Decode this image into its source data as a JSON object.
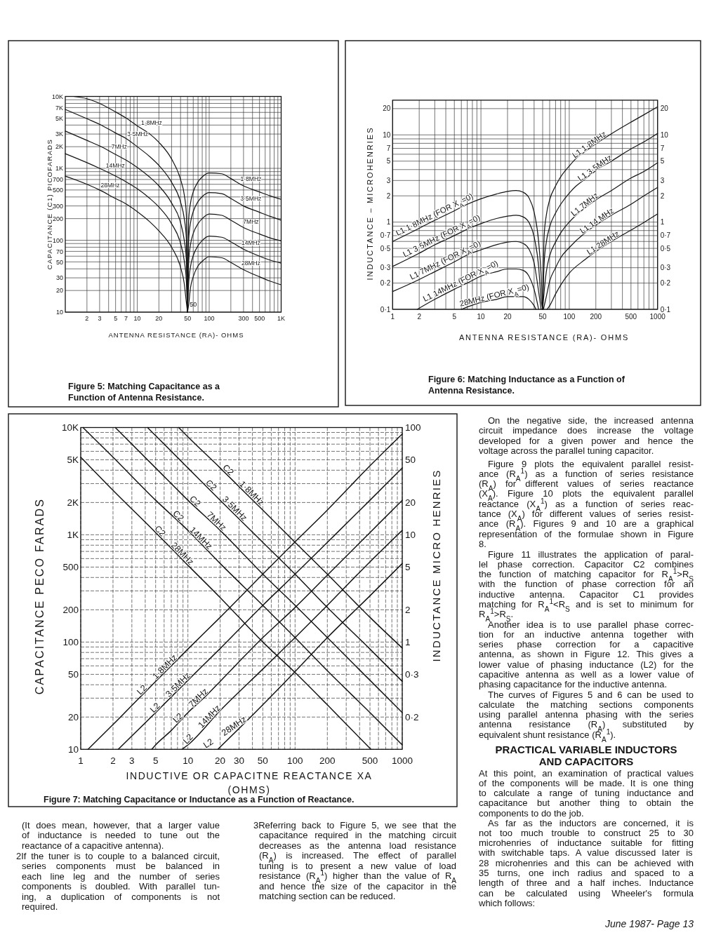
{
  "chart_data": [
    {
      "type": "line",
      "title": "Figure 5: Matching Capacitance as a Function of Antenna Resistance.",
      "xlabel": "ANTENNA RESISTANCE (RA)- OHMS",
      "ylabel": "CAPACITANCE (C1) PICOFARADS",
      "log": "xy",
      "grid": true,
      "xlim": [
        1,
        1000
      ],
      "ylim": [
        10,
        10000
      ],
      "xticks": [
        2,
        3,
        {
          "value": 4,
          "label": null
        },
        5,
        {
          "value": 6,
          "label": null
        },
        7,
        {
          "value": 8,
          "label": null
        },
        {
          "value": 9,
          "label": null
        },
        10,
        20,
        {
          "value": 30,
          "label": null
        },
        {
          "value": 40,
          "label": null
        },
        50,
        {
          "value": 60,
          "label": null
        },
        {
          "value": 70,
          "label": null
        },
        {
          "value": 80,
          "label": null
        },
        {
          "value": 90,
          "label": null
        },
        100,
        {
          "value": 200,
          "label": null
        },
        300,
        {
          "value": 400,
          "label": null
        },
        500,
        {
          "value": 600,
          "label": null
        },
        {
          "value": 700,
          "label": null
        },
        {
          "value": 800,
          "label": null
        },
        {
          "value": 900,
          "label": null
        },
        {
          "value": 1000,
          "label": "1K"
        }
      ],
      "yticks": [
        10,
        20,
        30,
        {
          "value": 40,
          "label": null
        },
        50,
        {
          "value": 60,
          "label": null
        },
        70,
        {
          "value": 80,
          "label": null
        },
        {
          "value": 90,
          "label": null
        },
        100,
        200,
        300,
        {
          "value": 400,
          "label": null
        },
        500,
        {
          "value": 600,
          "label": null
        },
        700,
        {
          "value": 800,
          "label": null
        },
        {
          "value": 900,
          "label": null
        },
        {
          "value": 1000,
          "label": "1K"
        },
        {
          "value": 2000,
          "label": "2K"
        },
        {
          "value": 3000,
          "label": "3K"
        },
        {
          "value": 4000,
          "label": null
        },
        {
          "value": 5000,
          "label": "5K"
        },
        {
          "value": 6000,
          "label": null
        },
        {
          "value": 7000,
          "label": "7K"
        },
        {
          "value": 8000,
          "label": null
        },
        {
          "value": 9000,
          "label": null
        },
        {
          "value": 10000,
          "label": "10K"
        }
      ],
      "series": [
        {
          "name": "1·8MHz",
          "color": "#141414",
          "x": [
            1.3,
            2,
            3,
            5,
            7,
            10,
            15,
            20,
            30,
            40,
            45,
            48,
            50
          ],
          "values": [
            10000,
            9300,
            8000,
            6100,
            5000,
            3900,
            3000,
            2300,
            1350,
            700,
            430,
            240,
            10
          ]
        },
        {
          "name": "3·5MHz",
          "color": "#141414",
          "x": [
            1,
            2,
            3,
            5,
            7,
            10,
            15,
            20,
            30,
            40,
            45,
            48,
            50
          ],
          "values": [
            6600,
            4900,
            4100,
            3100,
            2600,
            2000,
            1450,
            1100,
            640,
            340,
            200,
            110,
            10
          ]
        },
        {
          "name": "7MHz",
          "color": "#141414",
          "x": [
            1,
            2,
            3,
            5,
            7,
            10,
            15,
            20,
            30,
            40,
            45,
            48,
            50
          ],
          "values": [
            3300,
            2450,
            2050,
            1560,
            1300,
            1030,
            750,
            570,
            330,
            175,
            100,
            55,
            10
          ]
        },
        {
          "name": "14MHz",
          "color": "#141414",
          "x": [
            1,
            2,
            3,
            5,
            7,
            10,
            15,
            20,
            30,
            40,
            45,
            48,
            50
          ],
          "values": [
            1600,
            1200,
            1000,
            780,
            650,
            520,
            380,
            290,
            170,
            90,
            52,
            28,
            10
          ]
        },
        {
          "name": "28MHz",
          "color": "#141414",
          "x": [
            1,
            2,
            3,
            5,
            7,
            10,
            15,
            20,
            30,
            40,
            45,
            48,
            50
          ],
          "values": [
            780,
            600,
            500,
            380,
            320,
            250,
            180,
            135,
            80,
            42,
            25,
            14,
            10
          ]
        },
        {
          "name": "1·8MHz",
          "color": "#141414",
          "x": [
            50,
            52,
            55,
            60,
            70,
            80,
            100,
            150,
            200,
            300,
            500,
            700,
            1000
          ],
          "values": [
            10,
            200,
            330,
            470,
            650,
            760,
            860,
            840,
            720,
            570,
            470,
            415,
            370
          ]
        },
        {
          "name": "3·5MHz",
          "color": "#141414",
          "x": [
            50,
            52,
            55,
            60,
            70,
            80,
            100,
            150,
            200,
            300,
            500,
            700,
            1000
          ],
          "values": [
            10,
            105,
            175,
            250,
            345,
            405,
            460,
            445,
            380,
            300,
            245,
            215,
            190
          ]
        },
        {
          "name": "7MHz",
          "color": "#141414",
          "x": [
            50,
            52,
            55,
            60,
            70,
            80,
            100,
            150,
            200,
            300,
            500,
            700,
            1000
          ],
          "values": [
            10,
            52,
            87,
            124,
            170,
            200,
            232,
            222,
            190,
            150,
            122,
            108,
            98
          ]
        },
        {
          "name": "14MHz",
          "color": "#141414",
          "x": [
            50,
            52,
            55,
            60,
            70,
            80,
            100,
            150,
            200,
            300,
            500,
            700,
            1000
          ],
          "values": [
            10,
            26,
            43,
            61,
            84,
            99,
            114,
            110,
            95,
            75,
            60,
            53,
            48
          ]
        },
        {
          "name": "28MHz",
          "color": "#141414",
          "x": [
            50,
            52,
            55,
            60,
            70,
            80,
            100,
            150,
            200,
            300,
            500,
            700,
            1000
          ],
          "values": [
            10,
            13,
            22,
            31,
            44,
            51,
            59,
            57,
            49,
            39,
            31,
            27,
            24
          ]
        }
      ],
      "annotations": [
        {
          "text": "50",
          "x": 50,
          "y": 12
        }
      ]
    },
    {
      "type": "line",
      "title": "Figure 6: Matching Inductance as a Function of Antenna Resistance.",
      "xlabel": "ANTENNA RESISTANCE (RA)- OHMS",
      "ylabel": "INDUCTANCE – MICROHENRIES",
      "log": "xy",
      "grid": true,
      "xlim": [
        1,
        1000
      ],
      "ylim": [
        0.1,
        25
      ],
      "xticks": [
        1,
        2,
        {
          "value": 3,
          "label": null
        },
        {
          "value": 4,
          "label": null
        },
        5,
        {
          "value": 6,
          "label": null
        },
        {
          "value": 7,
          "label": null
        },
        {
          "value": 8,
          "label": null
        },
        {
          "value": 9,
          "label": null
        },
        10,
        20,
        {
          "value": 30,
          "label": null
        },
        {
          "value": 40,
          "label": null
        },
        50,
        {
          "value": 60,
          "label": null
        },
        {
          "value": 70,
          "label": null
        },
        {
          "value": 80,
          "label": null
        },
        {
          "value": 90,
          "label": null
        },
        100,
        200,
        {
          "value": 300,
          "label": null
        },
        {
          "value": 400,
          "label": null
        },
        500,
        {
          "value": 600,
          "label": null
        },
        {
          "value": 700,
          "label": null
        },
        {
          "value": 800,
          "label": null
        },
        {
          "value": 900,
          "label": null
        },
        1000
      ],
      "yticks": [
        {
          "value": 0.1,
          "label": "0·1"
        },
        {
          "value": 0.2,
          "label": "0·2"
        },
        {
          "value": 0.3,
          "label": "0·3"
        },
        {
          "value": 0.4,
          "label": null
        },
        {
          "value": 0.5,
          "label": "0·5"
        },
        {
          "value": 0.6,
          "label": null
        },
        {
          "value": 0.7,
          "label": "0·7"
        },
        {
          "value": 0.8,
          "label": null
        },
        {
          "value": 0.9,
          "label": null
        },
        1,
        2,
        3,
        {
          "value": 4,
          "label": null
        },
        5,
        {
          "value": 6,
          "label": null
        },
        7,
        {
          "value": 8,
          "label": null
        },
        {
          "value": 9,
          "label": null
        },
        10,
        20
      ],
      "series": [
        {
          "name": "L1 1·8MHz (FOR X$_{A}$=0)",
          "color": "#141414",
          "x": [
            1,
            2,
            3,
            5,
            7,
            10,
            15,
            20,
            25,
            30,
            35,
            40,
            45,
            48,
            50
          ],
          "values": [
            0.6,
            0.85,
            1.05,
            1.35,
            1.6,
            1.85,
            2.1,
            2.25,
            2.3,
            2.2,
            1.9,
            1.3,
            0.6,
            0.25,
            0.1
          ]
        },
        {
          "name": "L1 3·5MHz (FOR X$_{A}$=0)",
          "color": "#141414",
          "x": [
            1,
            2,
            3,
            5,
            7,
            10,
            15,
            20,
            25,
            30,
            35,
            40,
            45,
            48,
            50
          ],
          "values": [
            0.31,
            0.44,
            0.55,
            0.7,
            0.83,
            0.96,
            1.1,
            1.17,
            1.2,
            1.15,
            0.99,
            0.68,
            0.31,
            0.13,
            0.1
          ]
        },
        {
          "name": "L1 7MHz (FOR X$_{A}$=0)",
          "color": "#141414",
          "x": [
            1,
            2,
            3,
            5,
            7,
            10,
            15,
            20,
            25,
            30,
            35,
            40,
            45,
            48
          ],
          "values": [
            0.16,
            0.22,
            0.27,
            0.35,
            0.42,
            0.48,
            0.55,
            0.59,
            0.6,
            0.57,
            0.49,
            0.34,
            0.16,
            0.1
          ]
        },
        {
          "name": "L1 14MHz (FOR X$_{A}$=0)",
          "color": "#141414",
          "x": [
            1.9,
            3,
            5,
            7,
            10,
            15,
            20,
            25,
            30,
            35,
            40,
            45
          ],
          "values": [
            0.1,
            0.13,
            0.17,
            0.2,
            0.24,
            0.27,
            0.29,
            0.29,
            0.28,
            0.24,
            0.17,
            0.1
          ]
        },
        {
          "name": "28MHz (FOR X$_{A}$=0)",
          "color": "#141414",
          "x": [
            6,
            10,
            15,
            20,
            25,
            30,
            35,
            40,
            42
          ],
          "values": [
            0.1,
            0.12,
            0.13,
            0.14,
            0.14,
            0.14,
            0.13,
            0.11,
            0.1
          ]
        }
      ]
    },
    {
      "type": "line",
      "log": "xy",
      "tick_labels": "y",
      "xlim": [
        1,
        1000
      ],
      "ylim": [
        0.1,
        25
      ],
      "yticks": [
        {
          "value": 0.1,
          "label": "0·1"
        },
        {
          "value": 0.2,
          "label": "0·2"
        },
        {
          "value": 0.3,
          "label": "0·3"
        },
        {
          "value": 0.5,
          "label": "0·5"
        },
        {
          "value": 0.7,
          "label": "0·7"
        },
        1,
        2,
        3,
        5,
        7,
        10,
        20
      ],
      "series": [
        {
          "name": "L1 1·8MHz",
          "color": "#141414",
          "x": [
            50,
            52,
            55,
            60,
            70,
            80,
            100,
            120,
            150,
            200,
            300,
            500,
            700,
            1000
          ],
          "values": [
            0.1,
            0.7,
            1.2,
            1.8,
            2.6,
            3.3,
            4.4,
            5.4,
            6.4,
            7.9,
            10.3,
            14,
            17,
            21
          ]
        },
        {
          "name": "L1 3·5MHz",
          "color": "#141414",
          "x": [
            50,
            52,
            55,
            60,
            70,
            80,
            100,
            120,
            150,
            200,
            300,
            500,
            700,
            1000
          ],
          "values": [
            0.1,
            0.34,
            0.59,
            0.88,
            1.27,
            1.6,
            2.15,
            2.6,
            3.1,
            3.9,
            5,
            6.9,
            8.3,
            10.4
          ]
        },
        {
          "name": "L1 7MHz",
          "color": "#141414",
          "x": [
            50,
            52,
            55,
            60,
            70,
            80,
            100,
            150,
            200,
            300,
            500,
            700,
            1000
          ],
          "values": [
            0.1,
            0.16,
            0.27,
            0.41,
            0.59,
            0.75,
            1,
            1.45,
            1.8,
            2.3,
            3.2,
            3.8,
            4.8
          ]
        },
        {
          "name": "L1 14 MHz",
          "color": "#141414",
          "x": [
            51,
            55,
            60,
            70,
            80,
            100,
            150,
            200,
            300,
            500,
            700,
            1000
          ],
          "values": [
            0.1,
            0.14,
            0.21,
            0.3,
            0.39,
            0.51,
            0.75,
            0.92,
            1.2,
            1.6,
            2,
            2.5
          ]
        },
        {
          "name": "L1 28MHz",
          "color": "#141414",
          "x": [
            56,
            60,
            70,
            80,
            100,
            150,
            200,
            300,
            500,
            700,
            1000
          ],
          "values": [
            0.1,
            0.11,
            0.15,
            0.19,
            0.26,
            0.37,
            0.46,
            0.6,
            0.81,
            0.99,
            1.24
          ]
        }
      ]
    },
    {
      "type": "line",
      "title": "Figure 7: Matching Capacitance or Inductance as a Function of Reactance.",
      "xlabel": "INDUCTIVE OR CAPACITNE REACTANCE  XA\n(OHMS)",
      "ylabel": "CAPACITANCE  PECO FARADS",
      "log": "xy",
      "grid": true,
      "xlim": [
        1,
        1000
      ],
      "ylim": [
        10,
        10000
      ],
      "xticks": [
        1,
        2,
        3,
        {
          "value": 4,
          "label": null
        },
        5,
        {
          "value": 6,
          "label": null
        },
        {
          "value": 7,
          "label": null
        },
        {
          "value": 8,
          "label": null
        },
        {
          "value": 9,
          "label": null
        },
        10,
        20,
        30,
        {
          "value": 40,
          "label": null
        },
        50,
        {
          "value": 60,
          "label": null
        },
        {
          "value": 70,
          "label": null
        },
        {
          "value": 80,
          "label": null
        },
        {
          "value": 90,
          "label": null
        },
        100,
        200,
        {
          "value": 300,
          "label": null
        },
        {
          "value": 400,
          "label": null
        },
        500,
        {
          "value": 600,
          "label": null
        },
        {
          "value": 700,
          "label": null
        },
        {
          "value": 800,
          "label": null
        },
        {
          "value": 900,
          "label": null
        },
        1000
      ],
      "yticks": [
        10,
        20,
        {
          "value": 30,
          "label": null
        },
        {
          "value": 40,
          "label": null
        },
        50,
        {
          "value": 60,
          "label": null
        },
        {
          "value": 70,
          "label": null
        },
        {
          "value": 80,
          "label": null
        },
        {
          "value": 90,
          "label": null
        },
        100,
        200,
        {
          "value": 300,
          "label": null
        },
        {
          "value": 400,
          "label": null
        },
        500,
        {
          "value": 600,
          "label": null
        },
        {
          "value": 700,
          "label": null
        },
        {
          "value": 800,
          "label": null
        },
        {
          "value": 900,
          "label": null
        },
        {
          "value": 1000,
          "label": "1K"
        },
        {
          "value": 2000,
          "label": "2K"
        },
        {
          "value": 3000,
          "label": null
        },
        {
          "value": 4000,
          "label": null
        },
        {
          "value": 5000,
          "label": "5K"
        },
        {
          "value": 6000,
          "label": null
        },
        {
          "value": 7000,
          "label": null
        },
        {
          "value": 8000,
          "label": null
        },
        {
          "value": 9000,
          "label": null
        },
        {
          "value": 10000,
          "label": "10K"
        }
      ],
      "series": [
        {
          "name": "C2 1·8MHz",
          "color": "#141414",
          "x": [
            8.2,
            10,
            20,
            50,
            100,
            200,
            500,
            1000
          ],
          "values": [
            10000,
            8200,
            4200,
            1700,
            850,
            430,
            170,
            88
          ]
        },
        {
          "name": "C2 3·5MHz",
          "color": "#141414",
          "x": [
            4.2,
            5,
            10,
            20,
            50,
            100,
            200,
            500,
            1000
          ],
          "values": [
            10000,
            8400,
            4200,
            2100,
            850,
            430,
            210,
            86,
            43
          ]
        },
        {
          "name": "C2 7MHz",
          "color": "#141414",
          "x": [
            2.1,
            5,
            10,
            20,
            50,
            100,
            200,
            500,
            1000
          ],
          "values": [
            10000,
            4200,
            2100,
            1100,
            430,
            220,
            110,
            44,
            22
          ]
        },
        {
          "name": "C2 14MHz",
          "color": "#141414",
          "x": [
            1.05,
            2,
            5,
            10,
            20,
            50,
            100,
            200,
            500,
            1000
          ],
          "values": [
            10000,
            5300,
            2100,
            1100,
            540,
            220,
            110,
            54,
            22,
            11
          ]
        },
        {
          "name": "C2 28MHz",
          "color": "#141414",
          "x": [
            1,
            2,
            5,
            10,
            20,
            50,
            100,
            200,
            510
          ],
          "values": [
            5300,
            2600,
            1050,
            520,
            260,
            100,
            52,
            26,
            10
          ]
        }
      ]
    },
    {
      "type": "line",
      "ylabel": "INDUCTANCE  MICRO HENRIES",
      "log": "xy",
      "tick_labels": "y",
      "xlim": [
        1,
        1000
      ],
      "ylim": [
        0.1,
        100
      ],
      "yticks": [
        {
          "value": 0.2,
          "label": "0·2"
        },
        {
          "value": 0.5,
          "label": "0·3"
        },
        1,
        2,
        5,
        10,
        20,
        50,
        100
      ],
      "series": [
        {
          "name": "L2 1·8MHz",
          "color": "#141414",
          "x": [
            1.17,
            2,
            5,
            10,
            20,
            50,
            100,
            200,
            500,
            1000
          ],
          "values": [
            0.1,
            0.17,
            0.43,
            0.86,
            1.7,
            4.3,
            8.6,
            17,
            44,
            87
          ]
        },
        {
          "name": "L2 3·5MHz",
          "color": "#141414",
          "x": [
            2.24,
            5,
            10,
            20,
            50,
            100,
            200,
            500,
            1000
          ],
          "values": [
            0.1,
            0.22,
            0.44,
            0.87,
            2.2,
            4.3,
            8.5,
            21,
            42
          ]
        },
        {
          "name": "L2 7MHz",
          "color": "#141414",
          "x": [
            4.6,
            5,
            7,
            10,
            15,
            20,
            50,
            100,
            200,
            500,
            1000
          ],
          "values": [
            0.1,
            0.11,
            0.15,
            0.22,
            0.32,
            0.43,
            1.1,
            2.1,
            4.2,
            10.5,
            21
          ]
        },
        {
          "name": "L2 14MHz",
          "color": "#141414",
          "x": [
            8.8,
            10,
            20,
            50,
            100,
            200,
            500,
            1000
          ],
          "values": [
            0.1,
            0.11,
            0.23,
            0.56,
            1.1,
            2.2,
            5.6,
            11
          ]
        },
        {
          "name": "L2 28MHz",
          "color": "#141414",
          "x": [
            19,
            50,
            100,
            200,
            500,
            1000
          ],
          "values": [
            0.1,
            0.26,
            0.53,
            1.1,
            2.7,
            5.4
          ]
        }
      ]
    },
    {
      "type": "other",
      "annotations": [
        "On the negative side, the increased antenna\ncircuit impedance does increase the voltage\ndeveloped for a given power and hence the\nvoltage across the parallel tuning capacitor.",
        "Figure 9 plots the equivalent parallel resist-\nance (R$_{A}$$^{1}$) as a function of series resistance\n(R$_{A}$) for different values of series reactance\n(X$_{A}$). Figure 10 plots the equivalent parallel\nreactance (X$_{A}$$^{1}$) as a function of series reac-\ntance (X$_{A}$) for different values of series resist-\nance (R$_{A}$). Figures 9 and 10 are a graphical\nrepresentation of the formulae shown in Figure\n8.",
        "Figure 11 illustrates the application of paral-\nlel phase correction. Capacitor C2 combines\nthe function of matching capacitor for R$_{A}$$^{1}$>R$_{S}$\nwith the function of phase correction for an\ninductive antenna. Capacitor C1 provides\nmatching for R$_{A}$$^{1}$<R$_{S}$ and is set to minimum for\nR$_{A}$$^{1}$>R$_{S}$.",
        "Another idea is to use parallel phase correc-\ntion for an inductive antenna together with\nseries phase correction for a capacitive\nantenna, as shown in Figure 12. This gives a\nlower value of phasing inductance (L2) for the\ncapacitive antenna as well as a lower value of\nphasing capacitance for the inductive antenna.",
        "The curves of Figures 5 and 6 can be used to\ncalculate the matching sections components\nusing parallel antenna phasing with the series\nantenna resistance (R$_{A}$) substituted by\nequivalent shunt resistance (R$_{A}$$^{1}$).",
        "PRACTICAL VARIABLE INDUCTORS\nAND CAPACITORS",
        "At this point, an examination of practical values\nof the components will be made. It is one thing\nto calculate a range of tuning inductance and\ncapacitance but another thing to obtain the\ncomponents to do the job.",
        "As far as the inductors are concerned, it is\nnot too much trouble to construct 25 to 30\nmicrohenries of inductance suitable for fitting\nwith switchable taps. A value discussed later is\n28 microhenries and this can be achieved with\n35 turns, one inch radius and spaced to a\nlength of three and a half inches. Inductance\ncan be calculated using Wheeler's formula\nwhich follows:",
        "(It does mean, however, that a larger value\nof inductance is needed to tune out the\nreactance of a capacitive antenna).",
        "2If the tuner is to couple to a balanced circuit,\nseries components must be balanced in\neach line leg and the number of series\ncomponents is doubled. With parallel tun-\ning, a duplication of components is not\nrequired.",
        "3Referring back to Figure 5, we see that the\ncapacitance required in the matching circuit\ndecreases as the antenna load resistance\n(R$_{A}$) is increased. The effect of parallel\ntuning is to present a new value of load\nresistance (R$_{A}$$^{1}$) higher than the value of R$_{A}$\nand hence the size of the capacitor in the\nmatching section can be reduced.",
        "June 1987- Page 13"
      ]
    }
  ]
}
